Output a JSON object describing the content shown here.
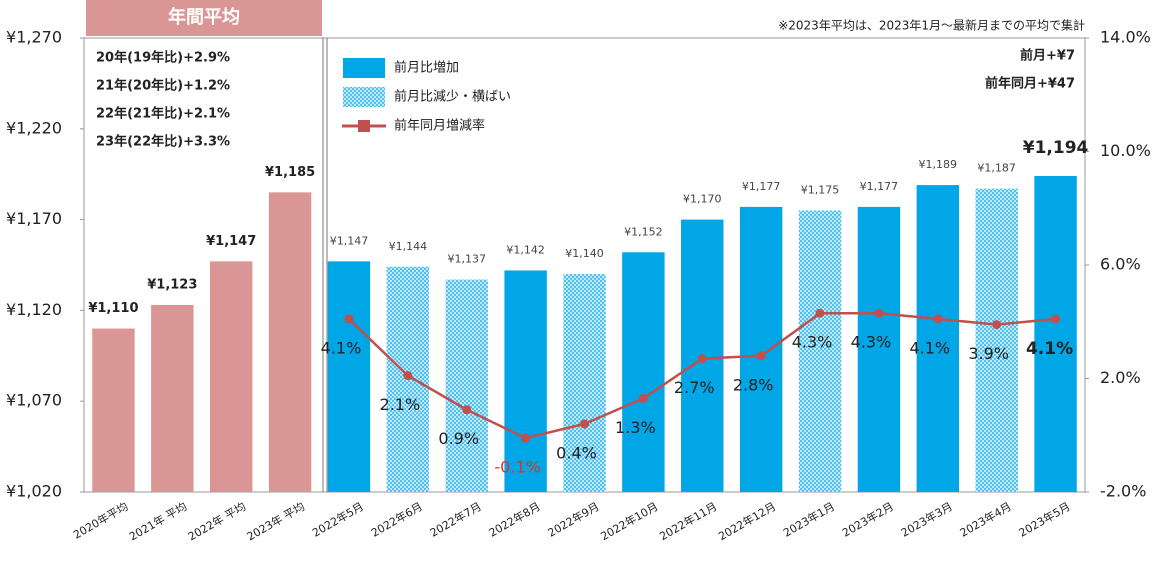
{
  "chart_data": {
    "type": "bar",
    "categories": [
      "2020年平均",
      "2021年 平均",
      "2022年 平均",
      "2023年 平均",
      "2022年5月",
      "2022年6月",
      "2022年7月",
      "2022年8月",
      "2022年9月",
      "2022年10月",
      "2022年11月",
      "2022年12月",
      "2023年1月",
      "2023年2月",
      "2023年3月",
      "2023年4月",
      "2023年5月"
    ],
    "series": [
      {
        "name": "年間平均",
        "type": "bar",
        "color": "#d99694",
        "values": [
          1110,
          1123,
          1147,
          1185,
          null,
          null,
          null,
          null,
          null,
          null,
          null,
          null,
          null,
          null,
          null,
          null,
          null
        ],
        "value_labels": [
          "¥1,110",
          "¥1,123",
          "¥1,147",
          "¥1,185",
          null,
          null,
          null,
          null,
          null,
          null,
          null,
          null,
          null,
          null,
          null,
          null,
          null
        ]
      },
      {
        "name": "前月比増加",
        "type": "bar",
        "color": "#00a6e6",
        "values": [
          null,
          null,
          null,
          null,
          1147,
          null,
          null,
          1142,
          null,
          1152,
          1170,
          1177,
          null,
          1177,
          1189,
          null,
          1194
        ],
        "value_labels": [
          null,
          null,
          null,
          null,
          "¥1,147",
          null,
          null,
          "¥1,142",
          null,
          "¥1,152",
          "¥1,170",
          "¥1,177",
          null,
          "¥1,177",
          "¥1,189",
          null,
          "¥1,194"
        ]
      },
      {
        "name": "前月比減少・横ばい",
        "type": "bar",
        "color": "#00a6e6",
        "pattern": "dots",
        "values": [
          null,
          null,
          null,
          null,
          null,
          1144,
          1137,
          null,
          1140,
          null,
          null,
          null,
          1175,
          null,
          null,
          1187,
          null
        ],
        "value_labels": [
          null,
          null,
          null,
          null,
          null,
          "¥1,144",
          "¥1,137",
          null,
          "¥1,140",
          null,
          null,
          null,
          "¥1,175",
          null,
          null,
          "¥1,187",
          null
        ]
      },
      {
        "name": "前年同月増減率",
        "type": "line",
        "axis": "y2",
        "color": "#c0504d",
        "values": [
          null,
          null,
          null,
          null,
          4.1,
          2.1,
          0.9,
          -0.1,
          0.4,
          1.3,
          2.7,
          2.8,
          4.3,
          4.3,
          4.1,
          3.9,
          4.1
        ],
        "value_labels": [
          null,
          null,
          null,
          null,
          "4.1%",
          "2.1%",
          "0.9%",
          "-0.1%",
          "0.4%",
          "1.3%",
          "2.7%",
          "2.8%",
          "4.3%",
          "4.3%",
          "4.1%",
          "3.9%",
          "4.1%"
        ]
      }
    ],
    "ylim": [
      1020,
      1270
    ],
    "yticks": [
      {
        "value": 1020,
        "label": "¥1,020"
      },
      {
        "value": 1070,
        "label": "¥1,070"
      },
      {
        "value": 1120,
        "label": "¥1,120"
      },
      {
        "value": 1170,
        "label": "¥1,170"
      },
      {
        "value": 1220,
        "label": "¥1,220"
      },
      {
        "value": 1270,
        "label": "¥1,270"
      }
    ],
    "y2lim": [
      -2,
      14
    ],
    "y2ticks": [
      {
        "value": -2,
        "label": "-2.0%"
      },
      {
        "value": 2,
        "label": "2.0%"
      },
      {
        "value": 6,
        "label": "6.0%"
      },
      {
        "value": 10,
        "label": "10.0%"
      },
      {
        "value": 14,
        "label": "14.0%"
      }
    ],
    "header": "年間平均",
    "annual_notes": [
      "20年(19年比)+2.9%",
      "21年(20年比)+1.2%",
      "22年(21年比)+2.1%",
      "23年(22年比)+3.3%"
    ],
    "note": "※2023年平均は、2023年1月～最新月までの平均で集計",
    "change_notes": [
      "前月+¥7",
      "前年同月+¥47"
    ]
  }
}
